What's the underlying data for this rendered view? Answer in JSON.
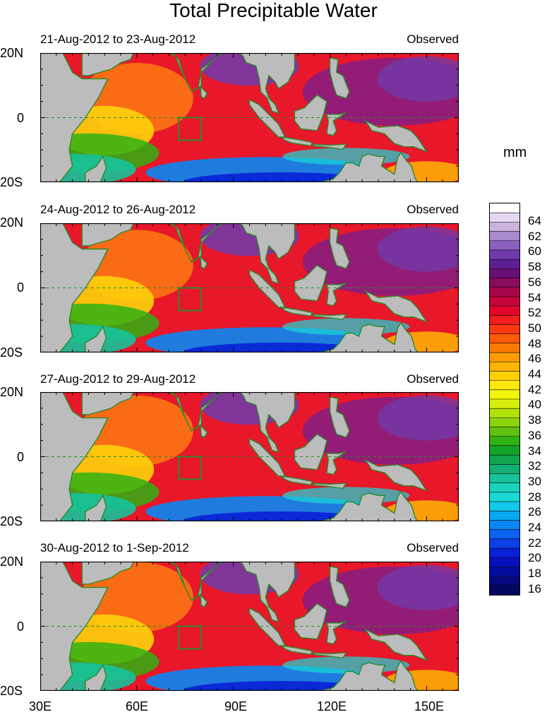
{
  "title": "Total Precipitable Water",
  "unit": "mm",
  "panels": [
    {
      "date_range": "21-Aug-2012 to 23-Aug-2012",
      "label": "Observed"
    },
    {
      "date_range": "24-Aug-2012 to 26-Aug-2012",
      "label": "Observed"
    },
    {
      "date_range": "27-Aug-2012 to 29-Aug-2012",
      "label": "Observed"
    },
    {
      "date_range": "30-Aug-2012 to 1-Sep-2012",
      "label": "Observed"
    }
  ],
  "lat_labels": [
    "20N",
    "0",
    "20S"
  ],
  "lon_labels": [
    "30E",
    "60E",
    "90E",
    "120E",
    "150E"
  ],
  "colorbar": {
    "labels": [
      "64",
      "62",
      "60",
      "58",
      "56",
      "54",
      "52",
      "50",
      "48",
      "46",
      "44",
      "42",
      "40",
      "38",
      "36",
      "34",
      "32",
      "30",
      "28",
      "26",
      "24",
      "22",
      "20",
      "18",
      "16"
    ],
    "colors": [
      "#ffffff",
      "#e6d8ee",
      "#cbb3de",
      "#a98acd",
      "#8a5fbd",
      "#6f3bac",
      "#5e1e95",
      "#6b0f78",
      "#8a0b5e",
      "#a8074a",
      "#c8053a",
      "#e2062d",
      "#f31e1e",
      "#fb3a12",
      "#fd5a0a",
      "#fd7a05",
      "#fd9a03",
      "#fdb503",
      "#fdd004",
      "#fde90a",
      "#f2f50d",
      "#d5ee0c",
      "#b0e20c",
      "#8cd30d",
      "#5fc20f",
      "#2fb213",
      "#12a42a",
      "#10a44d",
      "#12b075",
      "#16c29b",
      "#1ad2bd",
      "#18dad8",
      "#12c8ea",
      "#0aa8f0",
      "#0a86f2",
      "#0a62f0",
      "#0a40e6",
      "#0820d6",
      "#0610bc",
      "#060ca0",
      "#050a80",
      "#040660"
    ]
  }
}
